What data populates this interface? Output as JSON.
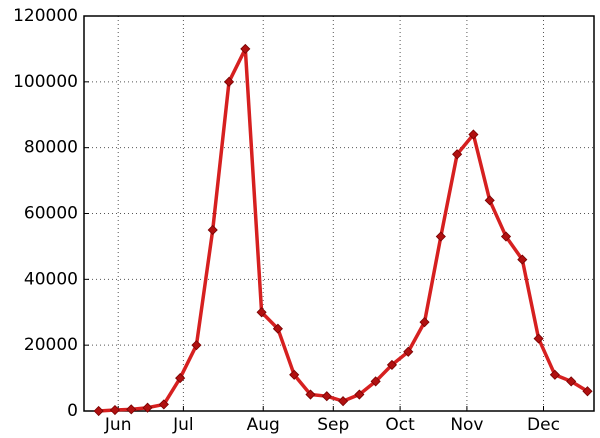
{
  "chart_data": {
    "type": "line",
    "x": [
      0,
      1,
      2,
      3,
      4,
      5,
      6,
      7,
      8,
      9,
      10,
      11,
      12,
      13,
      14,
      15,
      16,
      17,
      18,
      19,
      20,
      21,
      22,
      23,
      24,
      25,
      26,
      27,
      28,
      29,
      30
    ],
    "series": [
      {
        "color": "#d62020",
        "marker_color": "#b01010",
        "values": [
          0,
          300,
          500,
          1000,
          2000,
          10000,
          20000,
          55000,
          100000,
          110000,
          30000,
          25000,
          11000,
          5000,
          4500,
          3000,
          5000,
          9000,
          14000,
          18000,
          27000,
          53000,
          78000,
          84000,
          64000,
          53000,
          46000,
          22000,
          11000,
          9000,
          6000
        ]
      }
    ],
    "xlim": [
      -0.9,
      30.4
    ],
    "xticks": [
      {
        "value": 1.2,
        "label": "Jun"
      },
      {
        "value": 5.2,
        "label": "Jul"
      },
      {
        "value": 10.1,
        "label": "Aug"
      },
      {
        "value": 14.4,
        "label": "Sep"
      },
      {
        "value": 18.5,
        "label": "Oct"
      },
      {
        "value": 22.6,
        "label": "Nov"
      },
      {
        "value": 27.3,
        "label": "Dec"
      }
    ],
    "ylim": [
      0,
      120000
    ],
    "yticks": [
      0,
      20000,
      40000,
      60000,
      80000,
      100000,
      120000
    ],
    "grid": true
  }
}
